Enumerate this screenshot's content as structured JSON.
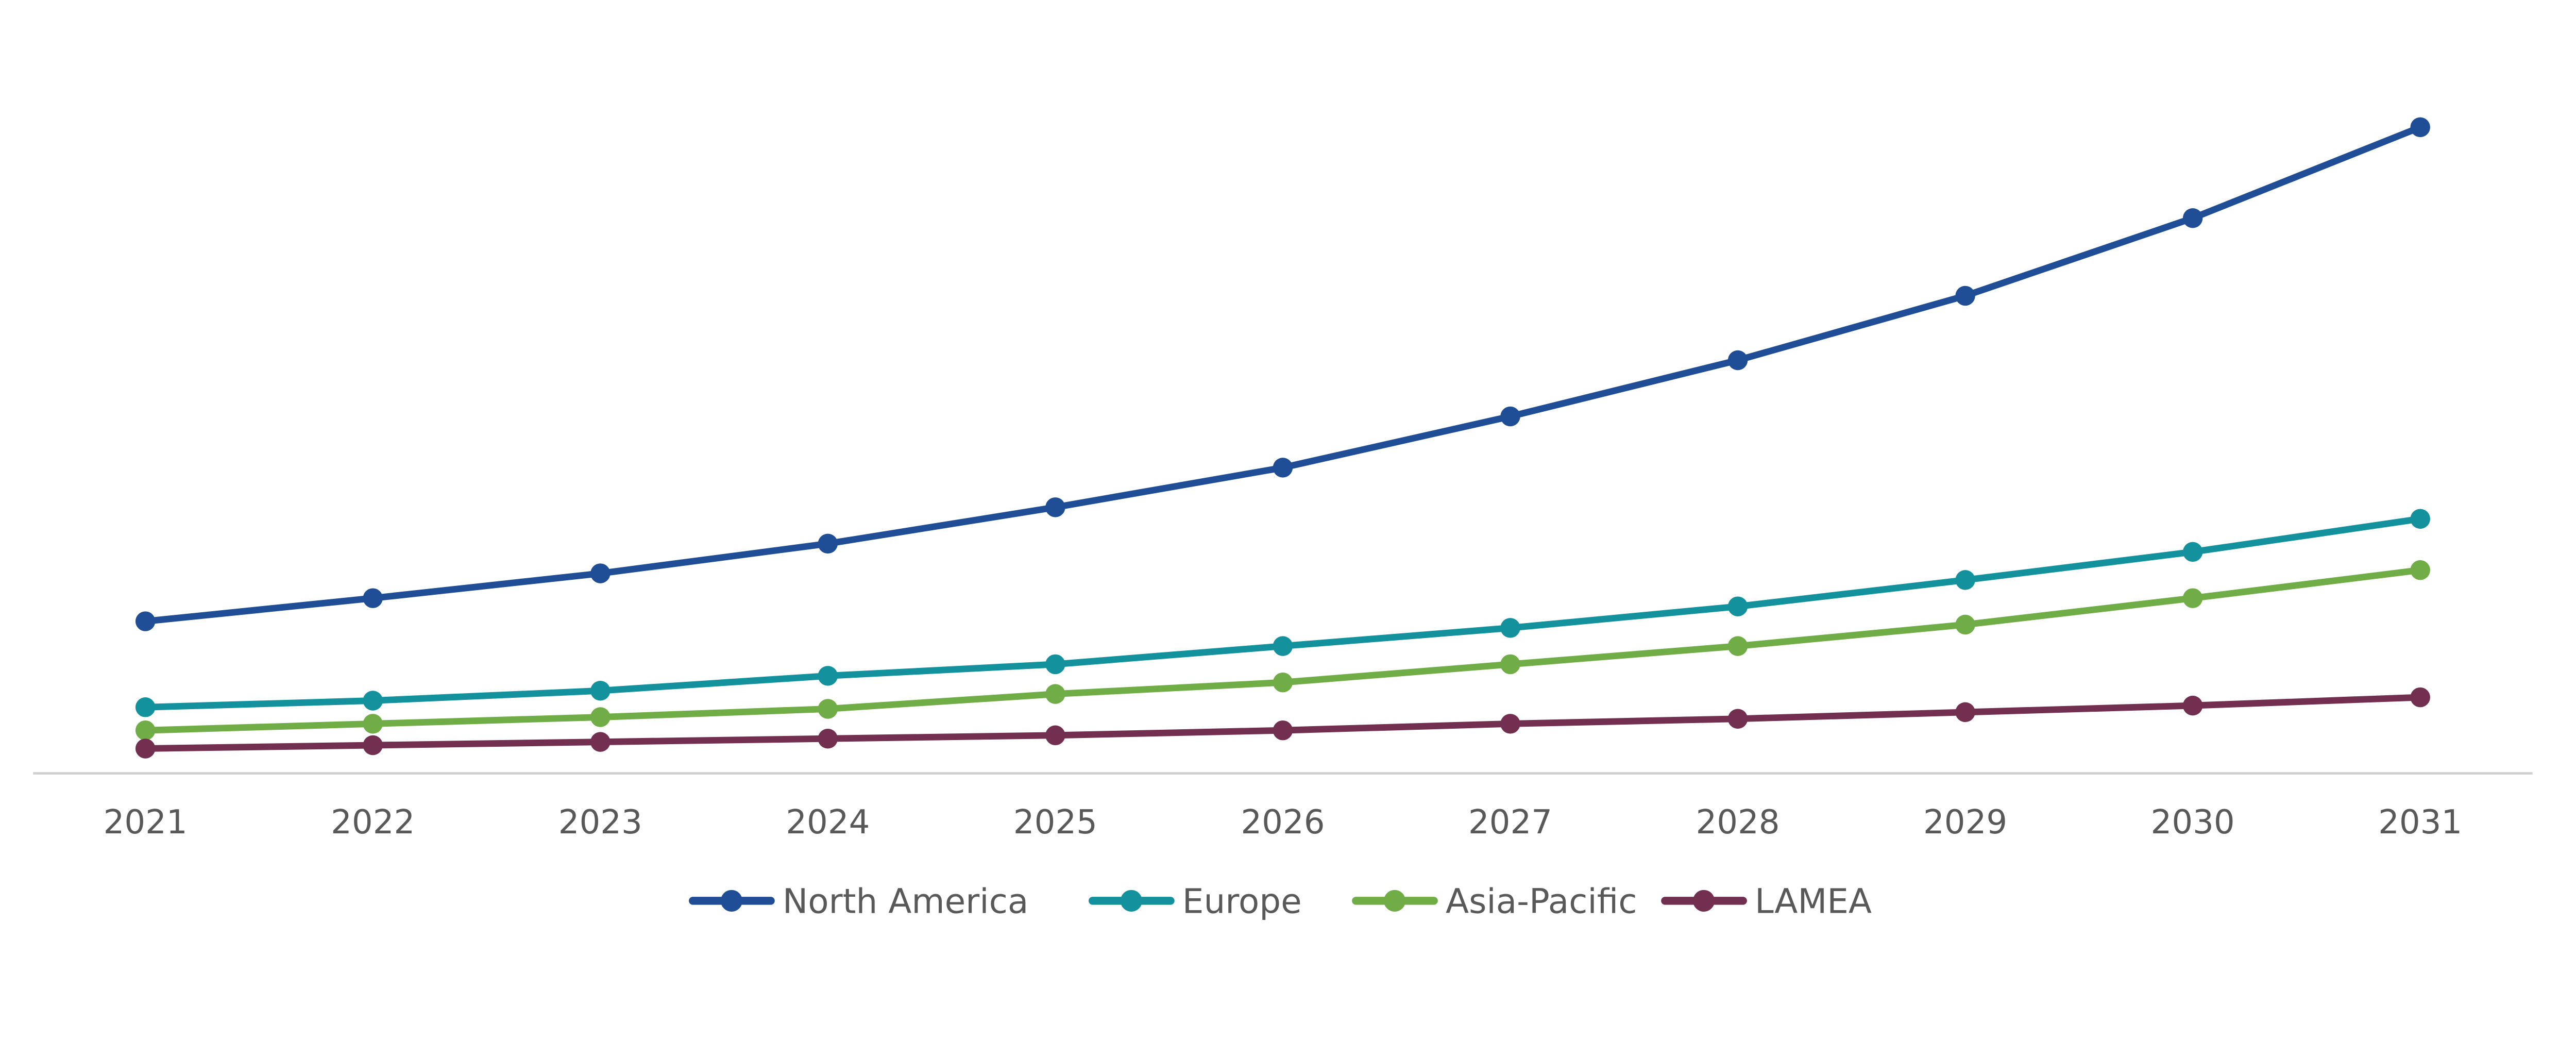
{
  "chart_data": {
    "type": "line",
    "title": "",
    "xlabel": "",
    "ylabel": "",
    "x": [
      "2021",
      "2022",
      "2023",
      "2024",
      "2025",
      "2026",
      "2027",
      "2028",
      "2029",
      "2030",
      "2031"
    ],
    "ylim": [
      0,
      448
    ],
    "y_axis_visible": false,
    "grid": false,
    "legend_position": "bottom",
    "note_units": "relative (no y-axis scale shown)",
    "series": [
      {
        "name": "North America",
        "color": "#1f4e96",
        "values": [
          92,
          106,
          121,
          139,
          161,
          185,
          216,
          250,
          289,
          336,
          391
        ]
      },
      {
        "name": "Europe",
        "color": "#13929e",
        "values": [
          40,
          44,
          50,
          59,
          66,
          77,
          88,
          101,
          117,
          134,
          154
        ]
      },
      {
        "name": "Asia-Pacific",
        "color": "#70ad47",
        "values": [
          26,
          30,
          34,
          39,
          48,
          55,
          66,
          77,
          90,
          106,
          123
        ]
      },
      {
        "name": "LAMEA",
        "color": "#722f50",
        "values": [
          15,
          17,
          19,
          21,
          23,
          26,
          30,
          33,
          37,
          41,
          46
        ]
      }
    ]
  }
}
